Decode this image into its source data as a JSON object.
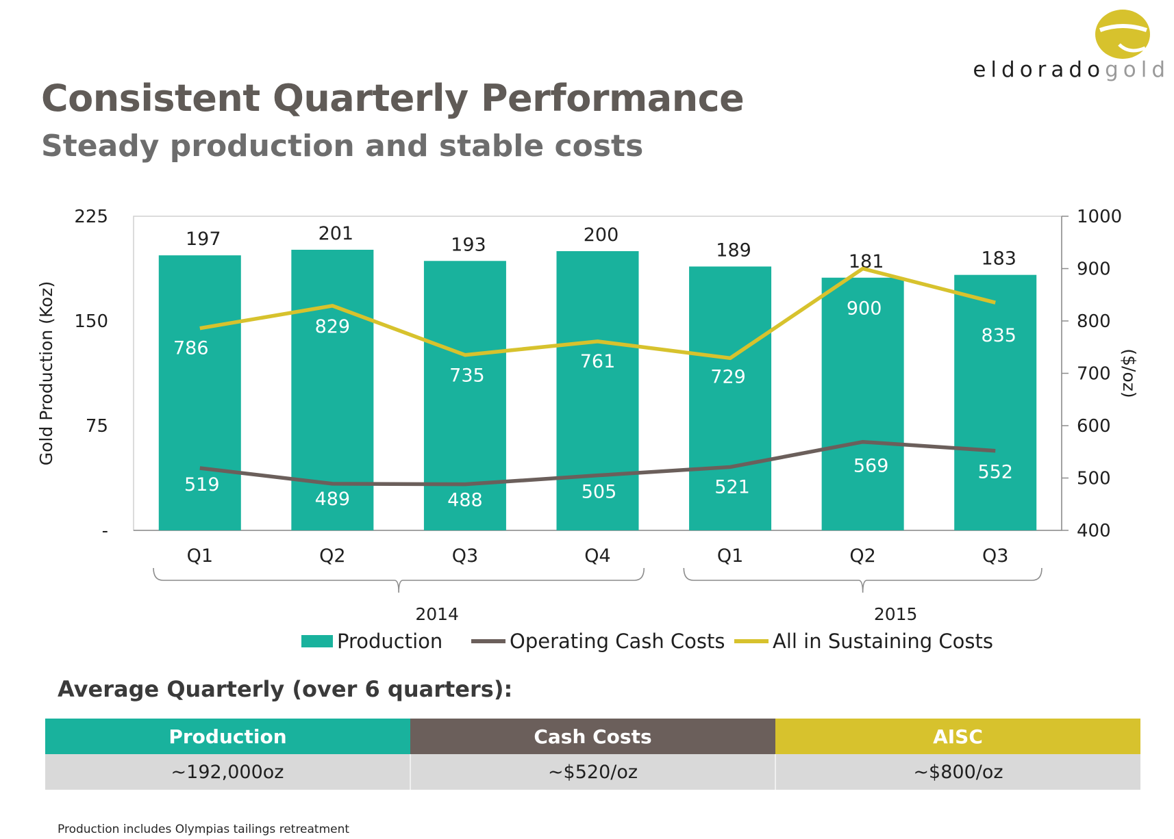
{
  "logo": {
    "word_dark": "eldorado",
    "word_light": "gold",
    "colors": {
      "mark": "#d7c22d"
    }
  },
  "header": {
    "title": "Consistent Quarterly Performance",
    "subtitle": "Steady production and stable costs"
  },
  "chart_data": {
    "type": "bar",
    "categories": [
      "Q1",
      "Q2",
      "Q3",
      "Q4",
      "Q1",
      "Q2",
      "Q3"
    ],
    "groups": [
      {
        "label": "2014",
        "from": 0,
        "to": 3
      },
      {
        "label": "2015",
        "from": 4,
        "to": 6
      }
    ],
    "series": [
      {
        "name": "Production",
        "kind": "bar",
        "axis": "left",
        "color": "#19b29d",
        "values": [
          197,
          201,
          193,
          200,
          189,
          181,
          183
        ]
      },
      {
        "name": "Operating Cash Costs",
        "kind": "line",
        "axis": "right",
        "color": "#6b5f5b",
        "values": [
          519,
          489,
          488,
          505,
          521,
          569,
          552
        ]
      },
      {
        "name": "All in Sustaining Costs",
        "kind": "line",
        "axis": "right",
        "color": "#d7c22d",
        "values": [
          786,
          829,
          735,
          761,
          729,
          900,
          835
        ]
      }
    ],
    "ylabel": "Gold Production (Koz)",
    "y2label": "($/oz)",
    "ylim": [
      0,
      225
    ],
    "y_ticks": [
      0,
      75,
      150,
      225
    ],
    "y_tick_labels": [
      "-",
      "75",
      "150",
      "225"
    ],
    "y2lim": [
      400,
      1000
    ],
    "y2_ticks": [
      400,
      500,
      600,
      700,
      800,
      900,
      1000
    ],
    "y2_tick_labels": [
      "400",
      "500",
      "600",
      "700",
      "800",
      "900",
      "1000"
    ],
    "legend": "bottom",
    "grid": false
  },
  "average": {
    "title": "Average Quarterly (over 6 quarters):",
    "columns": [
      {
        "header": "Production",
        "value": "~192,000oz",
        "color": "#19b29d"
      },
      {
        "header": "Cash Costs",
        "value": "~$520/oz",
        "color": "#6b5f5b"
      },
      {
        "header": "AISC",
        "value": "~$800/oz",
        "color": "#d7c22d"
      }
    ]
  },
  "footnote": "Production includes Olympias tailings retreatment"
}
